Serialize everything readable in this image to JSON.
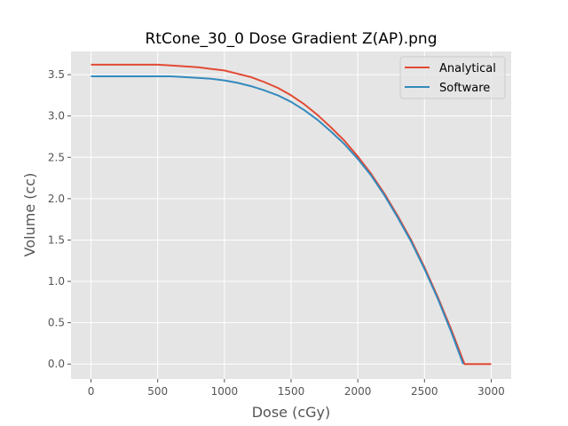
{
  "chart_data": {
    "type": "line",
    "title": "RtCone_30_0 Dose Gradient Z(AP).png",
    "xlabel": "Dose (cGy)",
    "ylabel": "Volume (cc)",
    "xlim": [
      -150,
      3150
    ],
    "ylim": [
      -0.18,
      3.78
    ],
    "xticks": [
      0,
      500,
      1000,
      1500,
      2000,
      2500,
      3000
    ],
    "xtick_labels": [
      "0",
      "500",
      "1000",
      "1500",
      "2000",
      "2500",
      "3000"
    ],
    "yticks": [
      0.0,
      0.5,
      1.0,
      1.5,
      2.0,
      2.5,
      3.0,
      3.5
    ],
    "ytick_labels": [
      "0.0",
      "0.5",
      "1.0",
      "1.5",
      "2.0",
      "2.5",
      "3.0",
      "3.5"
    ],
    "grid": true,
    "legend_position": "top-right",
    "series": [
      {
        "name": "Analytical",
        "color": "#E24A33",
        "x": [
          0,
          300,
          500,
          600,
          700,
          800,
          900,
          1000,
          1100,
          1200,
          1300,
          1400,
          1500,
          1600,
          1700,
          1800,
          1900,
          2000,
          2100,
          2200,
          2300,
          2400,
          2500,
          2600,
          2700,
          2800,
          3000
        ],
        "y": [
          3.62,
          3.62,
          3.62,
          3.61,
          3.6,
          3.59,
          3.57,
          3.55,
          3.51,
          3.47,
          3.41,
          3.34,
          3.25,
          3.14,
          3.01,
          2.86,
          2.7,
          2.51,
          2.3,
          2.06,
          1.79,
          1.5,
          1.17,
          0.81,
          0.42,
          0.0,
          0.0
        ]
      },
      {
        "name": "Software",
        "color": "#348ABD",
        "x": [
          0,
          300,
          500,
          600,
          700,
          800,
          900,
          1000,
          1100,
          1200,
          1300,
          1400,
          1500,
          1600,
          1700,
          1800,
          1900,
          2000,
          2100,
          2200,
          2300,
          2400,
          2500,
          2600,
          2700,
          2790
        ],
        "y": [
          3.48,
          3.48,
          3.48,
          3.48,
          3.47,
          3.46,
          3.45,
          3.43,
          3.4,
          3.36,
          3.31,
          3.25,
          3.17,
          3.07,
          2.95,
          2.81,
          2.66,
          2.48,
          2.28,
          2.04,
          1.77,
          1.48,
          1.15,
          0.79,
          0.39,
          0.0
        ]
      }
    ]
  }
}
